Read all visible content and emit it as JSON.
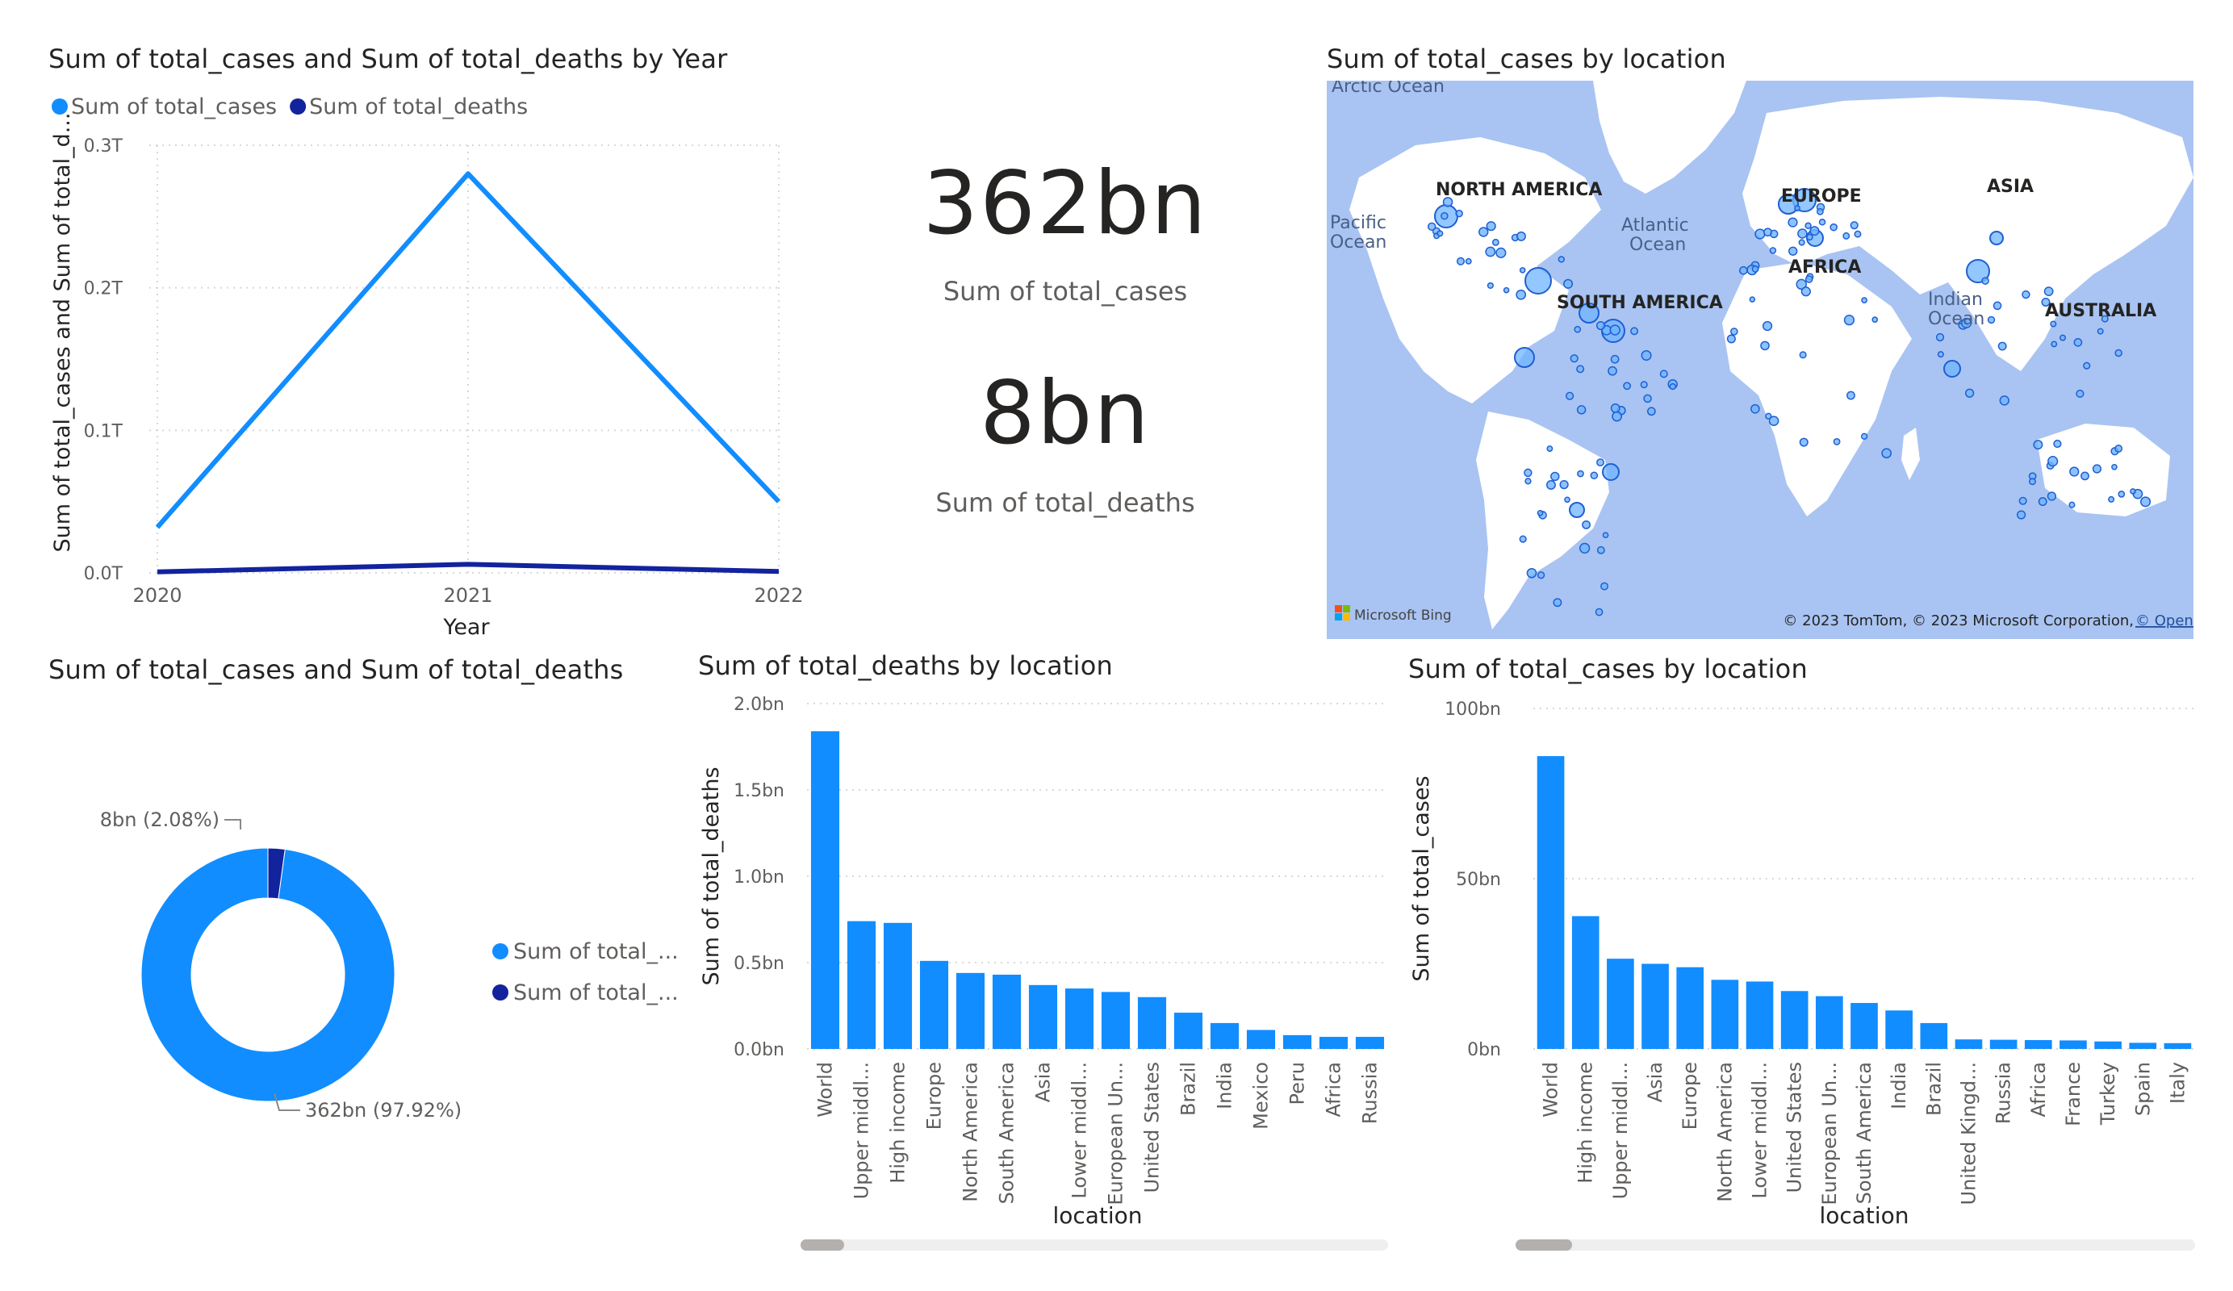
{
  "colors": {
    "cases": "#118dff",
    "deaths": "#12239e",
    "grid": "#d8d8d8",
    "axis_text": "#605e5c",
    "map_water": "#a9c4f2",
    "map_land": "#ffffff"
  },
  "line_chart": {
    "title": "Sum of total_cases and Sum of total_deaths by Year",
    "legend": [
      "Sum of total_cases",
      "Sum of total_deaths"
    ],
    "y_axis_title": "Sum of total_cases and Sum of total_d...",
    "x_axis_title": "Year",
    "y_ticks": [
      "0.0T",
      "0.1T",
      "0.2T",
      "0.3T"
    ]
  },
  "cards": [
    {
      "value": "362bn",
      "label": "Sum of total_cases"
    },
    {
      "value": "8bn",
      "label": "Sum of total_deaths"
    }
  ],
  "map": {
    "title": "Sum of total_cases by location",
    "labels": {
      "arctic": "Arctic Ocean",
      "north_america": "NORTH AMERICA",
      "europe": "EUROPE",
      "asia": "ASIA",
      "africa": "AFRICA",
      "south_america": "SOUTH AMERICA",
      "australia": "AUSTRALIA",
      "pacific_l1": "Pacific",
      "pacific_l2": "Ocean",
      "atlantic_l1": "Atlantic",
      "atlantic_l2": "Ocean",
      "indian_l1": "Indian",
      "indian_l2": "Ocean"
    },
    "brand": "Microsoft Bing",
    "copyright": "© 2023 TomTom, © 2023 Microsoft Corporation,",
    "osm_link": "© OpenStreetMap"
  },
  "donut": {
    "title": "Sum of total_cases and Sum of total_deaths",
    "label_deaths": "8bn (2.08%)",
    "label_cases": "362bn (97.92%)",
    "legend": [
      "Sum of total_...",
      "Sum of total_..."
    ]
  },
  "deaths_bar": {
    "title": "Sum of total_deaths by location",
    "y_axis_title": "Sum of total_deaths",
    "x_axis_title": "location",
    "y_ticks": [
      "0.0bn",
      "0.5bn",
      "1.0bn",
      "1.5bn",
      "2.0bn"
    ]
  },
  "cases_bar": {
    "title": "Sum of total_cases by location",
    "y_axis_title": "Sum of total_cases",
    "x_axis_title": "location",
    "y_ticks": [
      "0bn",
      "50bn",
      "100bn"
    ]
  },
  "chart_data": [
    {
      "type": "line",
      "title": "Sum of total_cases and Sum of total_deaths by Year",
      "xlabel": "Year",
      "ylabel": "Sum of total_cases and Sum of total_d...",
      "x": [
        "2020",
        "2021",
        "2022"
      ],
      "series": [
        {
          "name": "Sum of total_cases",
          "values": [
            0.032,
            0.28,
            0.05
          ]
        },
        {
          "name": "Sum of total_deaths",
          "values": [
            0.0007,
            0.006,
            0.001
          ]
        }
      ],
      "ylim": [
        0,
        0.3
      ],
      "y_unit": "T",
      "grid": true,
      "legend_position": "top-left"
    },
    {
      "type": "pie",
      "title": "Sum of total_cases and Sum of total_deaths",
      "categories": [
        "Sum of total_cases",
        "Sum of total_deaths"
      ],
      "values": [
        362,
        8
      ],
      "unit": "bn",
      "percents": [
        97.92,
        2.08
      ],
      "legend_position": "right"
    },
    {
      "type": "bar",
      "title": "Sum of total_deaths by location",
      "xlabel": "location",
      "ylabel": "Sum of total_deaths",
      "categories": [
        "World",
        "Upper middl...",
        "High income",
        "Europe",
        "North America",
        "South America",
        "Asia",
        "Lower middl...",
        "European Un...",
        "United States",
        "Brazil",
        "India",
        "Mexico",
        "Peru",
        "Africa",
        "Russia"
      ],
      "values": [
        1.84,
        0.74,
        0.73,
        0.51,
        0.44,
        0.43,
        0.37,
        0.35,
        0.33,
        0.3,
        0.21,
        0.15,
        0.11,
        0.08,
        0.07,
        0.07
      ],
      "ylim": [
        0,
        2.0
      ],
      "y_unit": "bn",
      "grid": true
    },
    {
      "type": "bar",
      "title": "Sum of total_cases by location",
      "xlabel": "location",
      "ylabel": "Sum of total_cases",
      "categories": [
        "World",
        "High income",
        "Upper middl...",
        "Asia",
        "Europe",
        "North America",
        "Lower middl...",
        "United States",
        "European Un...",
        "South America",
        "India",
        "Brazil",
        "United Kingd...",
        "Russia",
        "Africa",
        "France",
        "Turkey",
        "Spain",
        "Italy"
      ],
      "values": [
        86,
        39,
        26.5,
        25,
        24,
        20.3,
        19.8,
        17,
        15.5,
        13.5,
        11.3,
        7.6,
        2.8,
        2.7,
        2.6,
        2.5,
        2.2,
        1.8,
        1.7
      ],
      "ylim": [
        0,
        100
      ],
      "y_unit": "bn",
      "grid": true
    }
  ]
}
